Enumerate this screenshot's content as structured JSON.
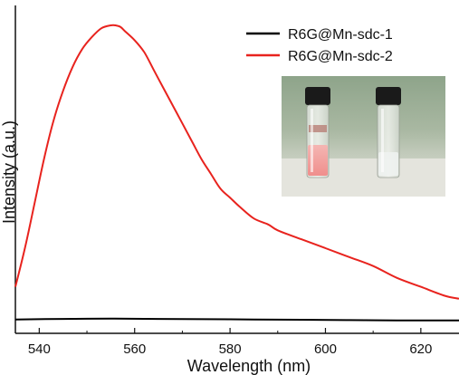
{
  "chart_data": {
    "type": "line",
    "xlabel": "Wavelength (nm)",
    "ylabel": "Intensity (a.u.)",
    "xlim": [
      535,
      628
    ],
    "ylim": [
      0,
      1.0
    ],
    "x_ticks": [
      540,
      560,
      580,
      600,
      620
    ],
    "y_ticks_labeled": false,
    "grid": false,
    "legend_position": "top-right",
    "series": [
      {
        "name": "R6G@Mn-sdc-1",
        "color": "#000000",
        "x": [
          535,
          545,
          555,
          565,
          575,
          585,
          595,
          605,
          615,
          628
        ],
        "y": [
          0.01,
          0.012,
          0.013,
          0.012,
          0.011,
          0.01,
          0.009,
          0.008,
          0.007,
          0.007
        ]
      },
      {
        "name": "R6G@Mn-sdc-2",
        "color": "#e8231e",
        "x": [
          535,
          537,
          539,
          541,
          543,
          545,
          547,
          549,
          551,
          553,
          555,
          556,
          557,
          558,
          560,
          562,
          564,
          566,
          568,
          570,
          572,
          574,
          576,
          578,
          580,
          582,
          585,
          588,
          590,
          595,
          600,
          605,
          610,
          615,
          620,
          625,
          628
        ],
        "y": [
          0.12,
          0.25,
          0.4,
          0.55,
          0.68,
          0.78,
          0.86,
          0.92,
          0.96,
          0.99,
          1.0,
          1.0,
          0.995,
          0.98,
          0.95,
          0.91,
          0.85,
          0.79,
          0.73,
          0.67,
          0.61,
          0.55,
          0.5,
          0.45,
          0.42,
          0.39,
          0.35,
          0.33,
          0.31,
          0.28,
          0.25,
          0.22,
          0.19,
          0.15,
          0.12,
          0.09,
          0.08
        ]
      }
    ],
    "inset_photo": "two vials: pink solution (left), clear solution (right)"
  }
}
